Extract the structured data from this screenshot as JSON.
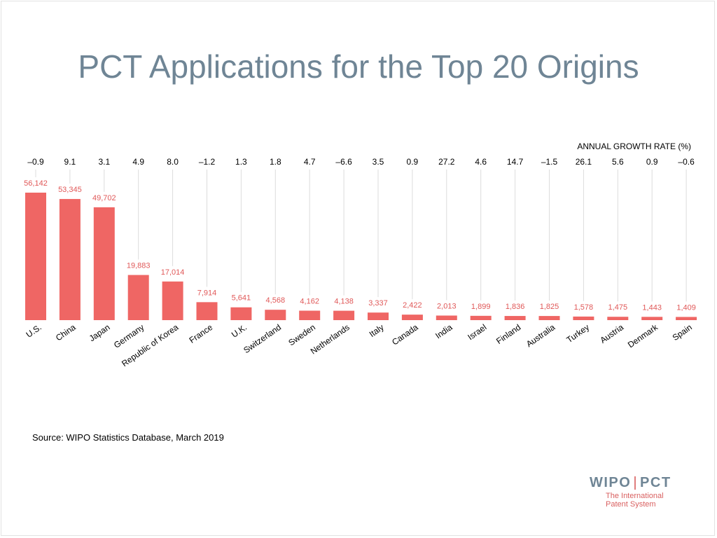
{
  "title": "PCT Applications for the Top 20 Origins",
  "source": "Source:  WIPO Statistics Database, March 2019",
  "logo": {
    "left": "WIPO",
    "separator": "|",
    "right": "PCT",
    "sub_line1": "The International",
    "sub_line2": "Patent System"
  },
  "colors": {
    "bar": "#ef6664",
    "label": "#e05858",
    "title": "#6f8595",
    "grid": "#dcdcdc"
  },
  "chart_data": {
    "type": "bar",
    "growth_header": "ANNUAL GROWTH RATE (%)",
    "categories": [
      "U.S.",
      "China",
      "Japan",
      "Germany",
      "Republic of Korea",
      "France",
      "U.K.",
      "Switzerland",
      "Sweden",
      "Netherlands",
      "Italy",
      "Canada",
      "India",
      "Israel",
      "Finland",
      "Australia",
      "Turkey",
      "Austria",
      "Denmark",
      "Spain"
    ],
    "values": [
      56142,
      53345,
      49702,
      19883,
      17014,
      7914,
      5641,
      4568,
      4162,
      4138,
      3337,
      2422,
      2013,
      1899,
      1836,
      1825,
      1578,
      1475,
      1443,
      1409
    ],
    "value_labels": [
      "56,142",
      "53,345",
      "49,702",
      "19,883",
      "17,014",
      "7,914",
      "5,641",
      "4,568",
      "4,162",
      "4,138",
      "3,337",
      "2,422",
      "2,013",
      "1,899",
      "1,836",
      "1,825",
      "1,578",
      "1,475",
      "1,443",
      "1,409"
    ],
    "growth_rates": [
      "–0.9",
      "9.1",
      "3.1",
      "4.9",
      "8.0",
      "–1.2",
      "1.3",
      "1.8",
      "4.7",
      "–6.6",
      "3.5",
      "0.9",
      "27.2",
      "4.6",
      "14.7",
      "–1.5",
      "26.1",
      "5.6",
      "0.9",
      "–0.6"
    ],
    "ylim": [
      0,
      60000
    ],
    "grid": false
  }
}
